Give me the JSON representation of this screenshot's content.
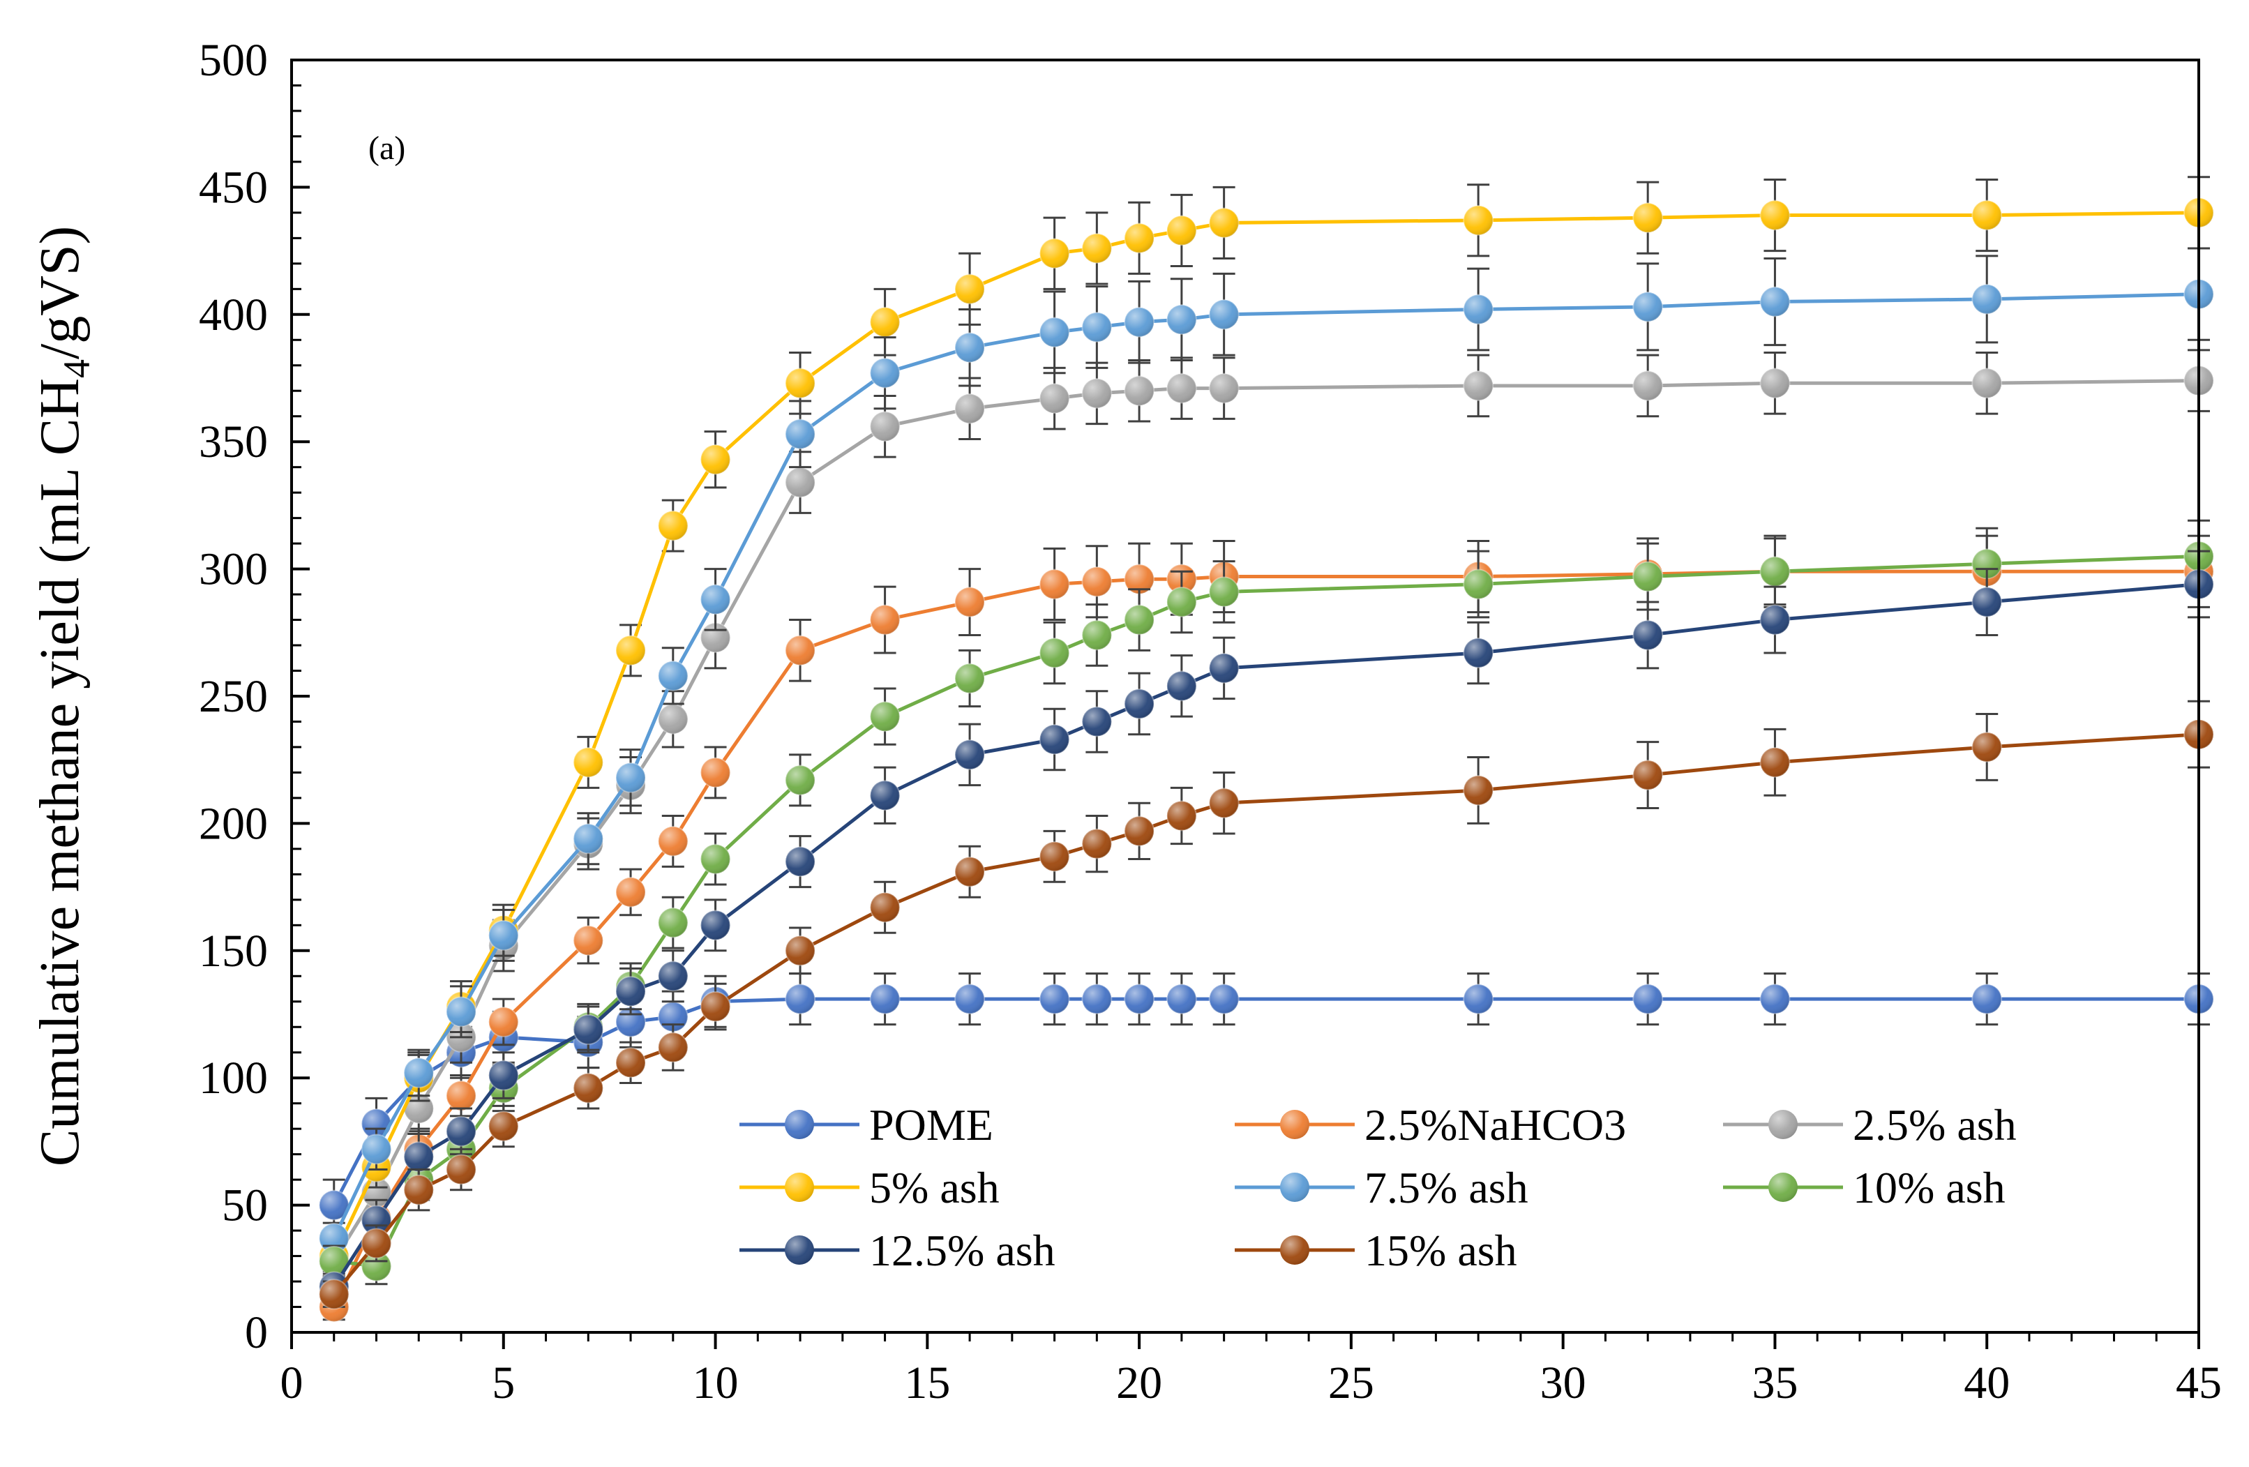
{
  "chart_data": {
    "type": "line",
    "title": "",
    "panel_label": "(a)",
    "xlabel": "",
    "ylabel": "Cumulative methane yield (mL CH4/gVS)",
    "ylabel_parts": {
      "prefix": "Cumulative methane yield (mL CH",
      "subscript": "4",
      "suffix": "/gVS)"
    },
    "xlim": [
      0,
      45
    ],
    "ylim": [
      0,
      500
    ],
    "x_ticks": [
      0,
      5,
      10,
      15,
      20,
      25,
      30,
      35,
      40,
      45
    ],
    "y_ticks": [
      0,
      50,
      100,
      150,
      200,
      250,
      300,
      350,
      400,
      450,
      500
    ],
    "grid": false,
    "legend_position": "bottom-center",
    "error_bars": true,
    "x": [
      1,
      2,
      3,
      4,
      5,
      7,
      8,
      9,
      10,
      12,
      14,
      16,
      18,
      19,
      20,
      21,
      22,
      28,
      32,
      35,
      40,
      45
    ],
    "series": [
      {
        "name": "POME",
        "color": "#4472C4",
        "values": [
          50,
          82,
          100,
          110,
          116,
          114,
          122,
          124,
          130,
          131,
          131,
          131,
          131,
          131,
          131,
          131,
          131,
          131,
          131,
          131,
          131,
          131
        ],
        "errors": [
          10,
          10,
          10,
          10,
          10,
          10,
          10,
          10,
          10,
          10,
          10,
          10,
          10,
          10,
          10,
          10,
          10,
          10,
          10,
          10,
          10,
          10
        ]
      },
      {
        "name": "2.5%NaHCO3",
        "color": "#ED7D31",
        "values": [
          10,
          45,
          72,
          93,
          122,
          154,
          173,
          193,
          220,
          268,
          280,
          287,
          294,
          295,
          296,
          296,
          297,
          297,
          298,
          299,
          299,
          299
        ],
        "errors": [
          5,
          8,
          8,
          8,
          9,
          9,
          9,
          10,
          10,
          12,
          13,
          13,
          14,
          14,
          14,
          14,
          14,
          14,
          14,
          14,
          14,
          14
        ]
      },
      {
        "name": "2.5% ash",
        "color": "#A5A5A5",
        "values": [
          28,
          55,
          88,
          116,
          152,
          192,
          215,
          241,
          273,
          334,
          356,
          363,
          367,
          369,
          370,
          371,
          371,
          372,
          372,
          373,
          373,
          374
        ],
        "errors": [
          6,
          8,
          9,
          10,
          10,
          10,
          11,
          11,
          12,
          12,
          12,
          12,
          12,
          12,
          12,
          12,
          12,
          12,
          12,
          12,
          12,
          12
        ]
      },
      {
        "name": "5% ash",
        "color": "#FFC000",
        "values": [
          30,
          65,
          100,
          128,
          158,
          224,
          268,
          317,
          343,
          373,
          397,
          410,
          424,
          426,
          430,
          433,
          436,
          437,
          438,
          439,
          439,
          440
        ],
        "errors": [
          6,
          8,
          9,
          10,
          10,
          10,
          10,
          10,
          11,
          12,
          13,
          14,
          14,
          14,
          14,
          14,
          14,
          14,
          14,
          14,
          14,
          14
        ]
      },
      {
        "name": "7.5% ash",
        "color": "#5B9BD5",
        "values": [
          37,
          72,
          102,
          126,
          156,
          194,
          218,
          258,
          288,
          353,
          377,
          387,
          393,
          395,
          397,
          398,
          400,
          402,
          403,
          405,
          406,
          408
        ],
        "errors": [
          6,
          8,
          9,
          10,
          10,
          10,
          11,
          11,
          12,
          13,
          14,
          15,
          16,
          16,
          16,
          16,
          16,
          16,
          17,
          17,
          17,
          18
        ]
      },
      {
        "name": "10% ash",
        "color": "#70AD47",
        "values": [
          28,
          26,
          60,
          72,
          96,
          120,
          136,
          161,
          186,
          217,
          242,
          257,
          267,
          274,
          280,
          287,
          291,
          294,
          297,
          299,
          302,
          305
        ],
        "errors": [
          6,
          7,
          8,
          8,
          9,
          9,
          9,
          10,
          10,
          10,
          11,
          11,
          12,
          12,
          12,
          12,
          12,
          13,
          13,
          13,
          14,
          14
        ]
      },
      {
        "name": "12.5% ash",
        "color": "#264478",
        "values": [
          18,
          44,
          69,
          79,
          101,
          119,
          134,
          140,
          160,
          185,
          211,
          227,
          233,
          240,
          247,
          254,
          261,
          267,
          274,
          280,
          287,
          294
        ],
        "errors": [
          5,
          8,
          9,
          9,
          9,
          9,
          9,
          10,
          10,
          10,
          11,
          12,
          12,
          12,
          12,
          12,
          12,
          12,
          13,
          13,
          13,
          13
        ]
      },
      {
        "name": "15% ash",
        "color": "#9E480E",
        "values": [
          15,
          35,
          56,
          64,
          81,
          96,
          106,
          112,
          128,
          150,
          167,
          181,
          187,
          192,
          197,
          203,
          208,
          213,
          219,
          224,
          230,
          235
        ],
        "errors": [
          5,
          7,
          8,
          8,
          8,
          8,
          8,
          9,
          9,
          9,
          10,
          10,
          10,
          11,
          11,
          11,
          12,
          13,
          13,
          13,
          13,
          13
        ]
      }
    ]
  }
}
